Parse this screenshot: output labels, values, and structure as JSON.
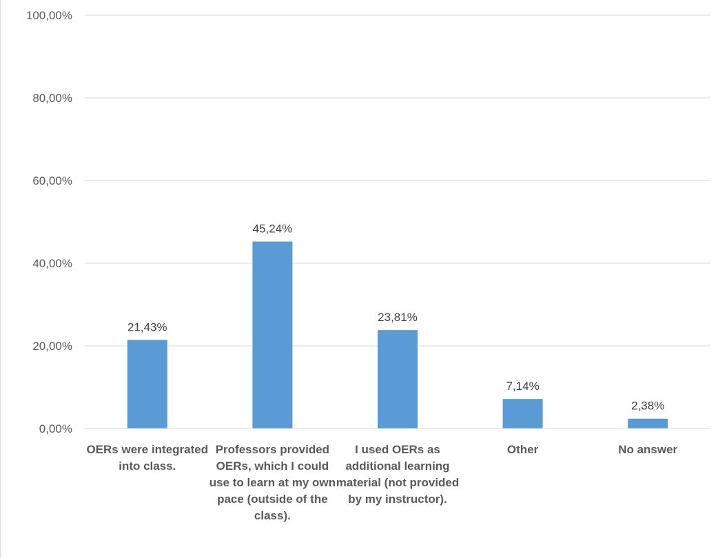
{
  "chart_data": {
    "type": "bar",
    "categories": [
      "OERs were integrated into class.",
      "Professors provided OERs, which I could use to learn at my own pace (outside of the class).",
      "I used OERs as additional learning material (not provided by my instructor).",
      "Other",
      "No answer"
    ],
    "values": [
      21.43,
      45.24,
      23.81,
      7.14,
      2.38
    ],
    "data_labels": [
      "21,43%",
      "45,24%",
      "23,81%",
      "7,14%",
      "2,38%"
    ],
    "y_ticks": [
      "0,00%",
      "20,00%",
      "40,00%",
      "60,00%",
      "80,00%",
      "100,00%"
    ],
    "ylim": [
      0,
      100
    ],
    "grid": true,
    "bar_color": "#5b9bd5",
    "grid_color": "#d9d9d9"
  }
}
